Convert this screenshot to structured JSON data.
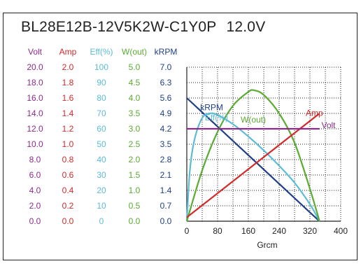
{
  "title": "BL28E12B-12V5K2W-C1Y0P",
  "voltage_label": "12.0V",
  "colors": {
    "volt": "#8b2c8b",
    "amp": "#d42a2a",
    "eff": "#5bbcd6",
    "wout": "#5aab32",
    "krpm": "#1f3f88"
  },
  "columns": [
    {
      "key": "volt",
      "header": "Volt",
      "values": [
        "20.0",
        "18.0",
        "16.0",
        "14.0",
        "12.0",
        "10.0",
        "8.0",
        "6.0",
        "4.0",
        "2.0",
        "0.0"
      ]
    },
    {
      "key": "amp",
      "header": "Amp",
      "values": [
        "2.0",
        "1.8",
        "1.6",
        "1.4",
        "1.2",
        "1.0",
        "0.8",
        "0.6",
        "0.4",
        "0.2",
        "0.0"
      ]
    },
    {
      "key": "eff",
      "header": "Eff(%)",
      "values": [
        "100",
        "90",
        "80",
        "70",
        "60",
        "50",
        "40",
        "30",
        "20",
        "10",
        "0"
      ]
    },
    {
      "key": "wout",
      "header": "W(out)",
      "values": [
        "5.0",
        "4.5",
        "4.0",
        "3.5",
        "3.0",
        "2.5",
        "2.0",
        "1.5",
        "1.0",
        "0.5",
        "0.0"
      ]
    },
    {
      "key": "krpm",
      "header": "kRPM",
      "values": [
        "7.0",
        "6.3",
        "5.6",
        "4.9",
        "4.2",
        "3.5",
        "2.8",
        "2.1",
        "1.4",
        "0.7",
        "0.0"
      ]
    }
  ],
  "chart_data": {
    "type": "line",
    "xlabel": "Grcm",
    "xlim": [
      0,
      400
    ],
    "xticks": [
      0,
      80,
      160,
      240,
      320,
      400
    ],
    "y_fraction_range": [
      0,
      1
    ],
    "grid": true,
    "series": [
      {
        "name": "kRPM",
        "key": "krpm",
        "unit_max": 7.0,
        "x": [
          0,
          80,
          160,
          240,
          320,
          345
        ],
        "y": [
          5.6,
          4.3,
          3.0,
          1.7,
          0.4,
          0.0
        ]
      },
      {
        "name": "Eff(%)",
        "key": "eff",
        "unit_max": 100,
        "x": [
          0,
          8,
          20,
          40,
          60,
          80,
          120,
          160,
          200,
          240,
          280,
          320,
          345
        ],
        "y": [
          0,
          33,
          53,
          67,
          70,
          69,
          63,
          55,
          46,
          36,
          25,
          11,
          0
        ]
      },
      {
        "name": "W(out)",
        "key": "wout",
        "unit_max": 5.0,
        "x": [
          0,
          40,
          80,
          120,
          160,
          175,
          200,
          240,
          280,
          320,
          345
        ],
        "y": [
          0,
          1.65,
          2.9,
          3.75,
          4.2,
          4.25,
          4.1,
          3.5,
          2.55,
          1.05,
          0.0
        ]
      },
      {
        "name": "Amp",
        "key": "amp",
        "unit_max": 2.0,
        "x": [
          0,
          345
        ],
        "y": [
          0.05,
          1.4
        ]
      },
      {
        "name": "Volt",
        "key": "volt",
        "unit_max": 20.0,
        "x": [
          0,
          345
        ],
        "y": [
          12.0,
          12.0
        ]
      }
    ],
    "annotations": [
      {
        "text": "kRPM",
        "key": "krpm",
        "x": 35,
        "y_frac": 0.72
      },
      {
        "text": "Eff(%)",
        "key": "eff",
        "x": 47,
        "y_frac": 0.655
      },
      {
        "text": "W(out)",
        "key": "wout",
        "x": 140,
        "y_frac": 0.64
      },
      {
        "text": "Amp",
        "key": "amp",
        "x": 309,
        "y_frac": 0.685
      },
      {
        "text": "Volt",
        "key": "volt",
        "x": 350,
        "y_frac": 0.604
      }
    ]
  }
}
